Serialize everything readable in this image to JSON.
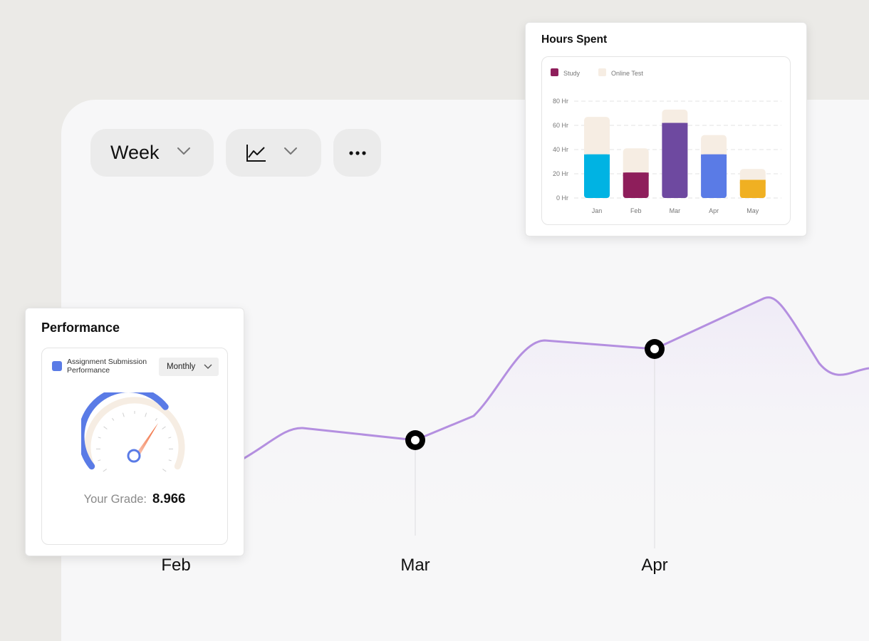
{
  "toolbar": {
    "period_label": "Week",
    "chart_type_icon": "line-chart-icon",
    "chevron_icon": "chevron-down-icon",
    "more_icon": "more-horizontal-icon"
  },
  "background_chart": {
    "months": [
      "Feb",
      "Mar",
      "Apr"
    ],
    "line_color": "#b48fe0"
  },
  "performance": {
    "title": "Performance",
    "legend_label": "Assignment Submission Performance",
    "legend_color": "#5a7be6",
    "dropdown_value": "Monthly",
    "grade_label": "Your Grade:",
    "grade_value": "8.966"
  },
  "hours_spent": {
    "title": "Hours Spent",
    "chart_data": {
      "type": "bar",
      "stacked": true,
      "categories": [
        "Jan",
        "Feb",
        "Mar",
        "Apr",
        "May"
      ],
      "series": [
        {
          "name": "Study",
          "values": [
            36,
            21,
            62,
            36,
            15
          ],
          "colors": [
            "#00b3e3",
            "#8e1e5b",
            "#6e49a0",
            "#5a7be6",
            "#f0b022"
          ]
        },
        {
          "name": "Online Test",
          "values": [
            31,
            20,
            11,
            16,
            9
          ],
          "color": "#f6ede3"
        }
      ],
      "legend": [
        {
          "name": "Study",
          "color": "#8e1e5b"
        },
        {
          "name": "Online Test",
          "color": "#f6ede3"
        }
      ],
      "yticks": [
        "0 Hr",
        "20 Hr",
        "40 Hr",
        "60 Hr",
        "80 Hr"
      ],
      "ylim": [
        0,
        80
      ],
      "grid": true,
      "legend_position": "top-left"
    }
  }
}
